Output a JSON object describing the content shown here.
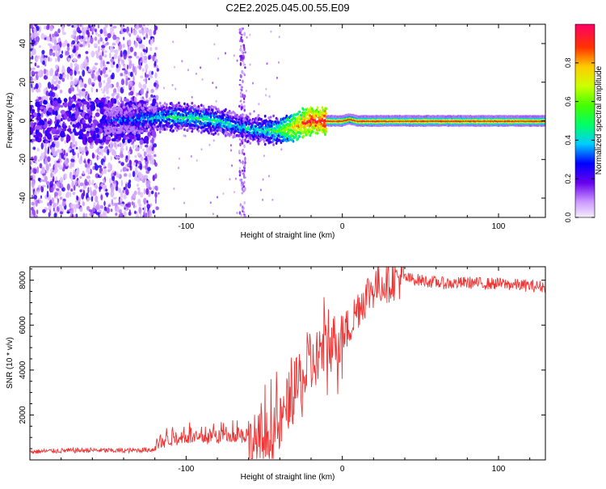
{
  "title": "C2E2.2025.045.00.55.E09",
  "chart_data": [
    {
      "type": "heatmap",
      "xlabel": "Height of straight line (km)",
      "ylabel": "Frequency (Hz)",
      "xlim": [
        -200,
        130
      ],
      "ylim": [
        -50,
        50
      ],
      "x_ticks": [
        -100,
        0,
        100
      ],
      "y_ticks": [
        -40,
        -20,
        0,
        20,
        40
      ],
      "colorbar": {
        "label": "Normalized spectral amplitude",
        "range": [
          0.0,
          1.0
        ],
        "ticks": [
          "0.0",
          "0.2",
          "0.4",
          "0.6",
          "0.8"
        ]
      },
      "ridge": {
        "x": [
          -150,
          -130,
          -110,
          -100,
          -90,
          -80,
          -70,
          -60,
          -50,
          -40,
          -30,
          -25,
          -20,
          -10,
          0,
          5,
          10,
          20,
          50,
          100,
          130
        ],
        "freq": [
          0,
          1,
          2,
          2,
          1,
          0,
          -2,
          -4,
          -5,
          -5,
          -3,
          -1,
          0,
          0,
          0,
          1,
          0,
          0,
          0,
          0,
          0
        ],
        "amplitude": [
          0.25,
          0.35,
          0.45,
          0.45,
          0.45,
          0.45,
          0.4,
          0.4,
          0.45,
          0.55,
          0.75,
          0.85,
          0.9,
          0.95,
          0.95,
          0.9,
          0.95,
          0.95,
          0.95,
          0.95,
          0.95
        ]
      }
    },
    {
      "type": "line",
      "xlabel": "Height of straight line (km)",
      "ylabel": "SNR (10 * v/v)",
      "xlim": [
        -200,
        130
      ],
      "ylim": [
        0,
        8600
      ],
      "x_ticks": [
        -100,
        0,
        100
      ],
      "y_ticks": [
        2000,
        4000,
        6000,
        8000
      ],
      "color": "#ee3333",
      "series": [
        {
          "x": [
            -200,
            -180,
            -160,
            -140,
            -120,
            -110,
            -100,
            -90,
            -80,
            -70,
            -60,
            -50,
            -45,
            -40,
            -35,
            -30,
            -25,
            -20,
            -15,
            -10,
            -5,
            0,
            5,
            10,
            15,
            20,
            25,
            30,
            35,
            40,
            50,
            60,
            70,
            80,
            90,
            100,
            110,
            120,
            130
          ],
          "y": [
            250,
            300,
            320,
            300,
            350,
            600,
            700,
            650,
            700,
            800,
            700,
            900,
            1200,
            1500,
            2500,
            3200,
            3600,
            4000,
            4800,
            5000,
            5300,
            5500,
            6000,
            6800,
            7300,
            7700,
            7900,
            8000,
            8100,
            8100,
            8000,
            7900,
            7850,
            7900,
            7850,
            7850,
            7800,
            7750,
            7700
          ]
        }
      ]
    }
  ]
}
